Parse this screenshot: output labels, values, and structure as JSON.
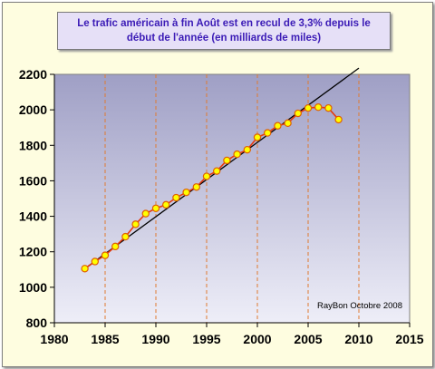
{
  "chart_data": {
    "type": "line",
    "title": "Le trafic américain à fin Août est  en recul de 3,3% depuis le début de l'année (en milliards de miles)",
    "credit": "RayBon Octobre 2008",
    "xlim": [
      1980,
      2015
    ],
    "ylim": [
      800,
      2200
    ],
    "x_ticks": [
      1980,
      1985,
      1990,
      1995,
      2000,
      2005,
      2010,
      2015
    ],
    "y_ticks": [
      800,
      1000,
      1200,
      1400,
      1600,
      1800,
      2000,
      2200
    ],
    "x_tick_labels": [
      "1980",
      "1985",
      "1990",
      "1995",
      "2000",
      "2005",
      "2010",
      "2015"
    ],
    "y_tick_labels": [
      "800",
      "1000",
      "1200",
      "1400",
      "1600",
      "1800",
      "2000",
      "2200"
    ],
    "grid": "vertical dashed",
    "colors": {
      "plot_background_top": "#9f9fc5",
      "plot_background_bottom": "#eeeef8",
      "grid": "#e07a30",
      "series_line": "#e53a10",
      "marker_fill": "#ffff00",
      "marker_stroke": "#e06000",
      "trend": "#000000"
    },
    "series": [
      {
        "kind": "data",
        "x": [
          1983,
          1984,
          1985,
          1986,
          1987,
          1988,
          1989,
          1990,
          1991,
          1992,
          1993,
          1994,
          1995,
          1996,
          1997,
          1998,
          1999,
          2000,
          2001,
          2002,
          2003,
          2004,
          2005,
          2006,
          2007,
          2008
        ],
        "values": [
          1105,
          1145,
          1180,
          1230,
          1285,
          1355,
          1415,
          1445,
          1465,
          1505,
          1535,
          1565,
          1625,
          1655,
          1715,
          1750,
          1775,
          1845,
          1870,
          1910,
          1925,
          1980,
          2010,
          2015,
          2010,
          1945
        ]
      },
      {
        "kind": "trend",
        "x": [
          1983,
          2010
        ],
        "values": [
          1105,
          2235
        ]
      }
    ]
  }
}
